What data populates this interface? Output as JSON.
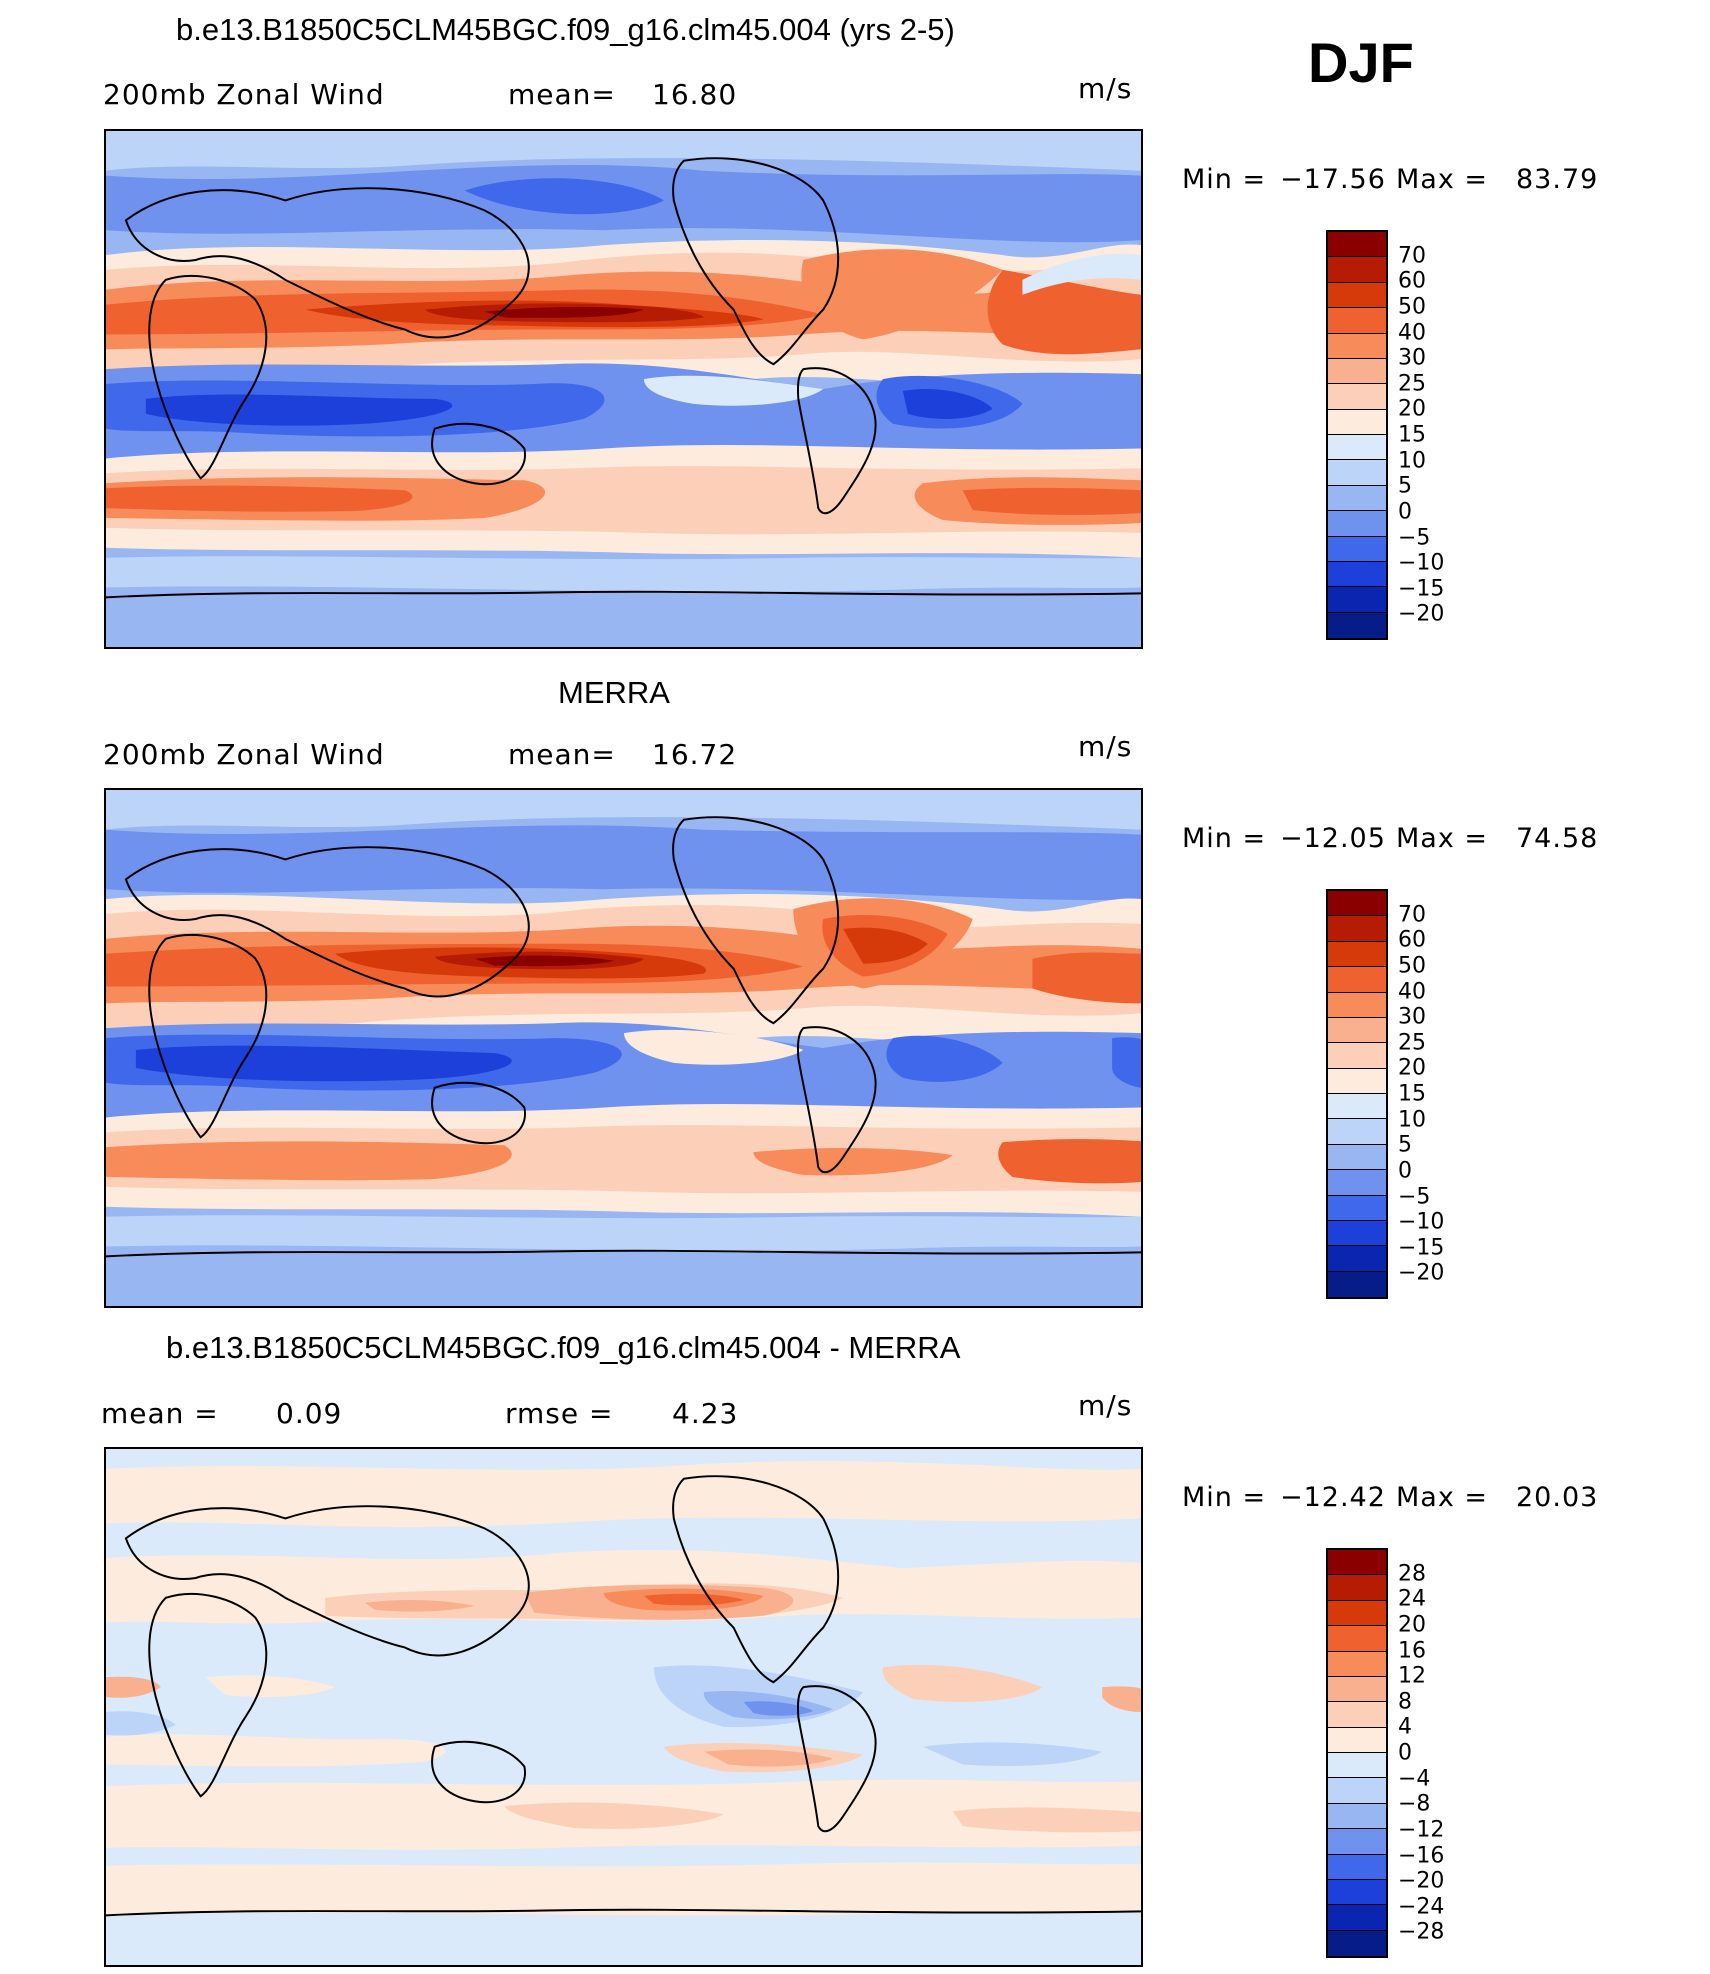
{
  "season": "DJF",
  "units_label": "m/s",
  "panels": [
    {
      "title": "b.e13.B1850C5CLM45BGC.f09_g16.clm45.004 (yrs 2-5)",
      "field_label": "200mb Zonal Wind",
      "stat1_label": "mean=",
      "stat1_value": "16.80",
      "stat2_label": "",
      "stat2_value": "",
      "min_label": "Min =",
      "min_value": "−17.56",
      "max_label": "Max =",
      "max_value": "83.79",
      "colorbar": {
        "labels": [
          "70",
          "60",
          "50",
          "40",
          "30",
          "25",
          "20",
          "15",
          "10",
          "5",
          "0",
          "−5",
          "−10",
          "−15",
          "−20"
        ],
        "colors": [
          "#8a0000",
          "#b61c04",
          "#d63a0a",
          "#ef6230",
          "#f78b5a",
          "#f9b08e",
          "#fcd0b8",
          "#fdebdd",
          "#dbeafa",
          "#bcd4f8",
          "#98b6f2",
          "#6e92ee",
          "#3f68ea",
          "#1c40d9",
          "#0a26b0",
          "#061c88"
        ]
      },
      "map_features": [
        "subtropical westerly jet over Asia and North Pacific",
        "jet over North America and Atlantic",
        "tropical easterlies",
        "southern hemisphere westerlies"
      ]
    },
    {
      "title": "MERRA",
      "field_label": "200mb Zonal Wind",
      "stat1_label": "mean=",
      "stat1_value": "16.72",
      "stat2_label": "",
      "stat2_value": "",
      "min_label": "Min =",
      "min_value": "−12.05",
      "max_label": "Max =",
      "max_value": "74.58",
      "colorbar": {
        "labels": [
          "70",
          "60",
          "50",
          "40",
          "30",
          "25",
          "20",
          "15",
          "10",
          "5",
          "0",
          "−5",
          "−10",
          "−15",
          "−20"
        ],
        "colors": [
          "#8a0000",
          "#b61c04",
          "#d63a0a",
          "#ef6230",
          "#f78b5a",
          "#f9b08e",
          "#fcd0b8",
          "#fdebdd",
          "#dbeafa",
          "#bcd4f8",
          "#98b6f2",
          "#6e92ee",
          "#3f68ea",
          "#1c40d9",
          "#0a26b0",
          "#061c88"
        ]
      },
      "map_features": [
        "jet core east of Japan",
        "jet over eastern North America",
        "tropical easterlies over Indian Ocean and Maritime Continent",
        "southern hemisphere westerlies"
      ]
    },
    {
      "title": "b.e13.B1850C5CLM45BGC.f09_g16.clm45.004 - MERRA",
      "field_label": "",
      "stat1_label": "mean =",
      "stat1_value": "0.09",
      "stat2_label": "rmse =",
      "stat2_value": "4.23",
      "min_label": "Min =",
      "min_value": "−12.42",
      "max_label": "Max =",
      "max_value": "20.03",
      "colorbar": {
        "labels": [
          "28",
          "24",
          "20",
          "16",
          "12",
          "8",
          "4",
          "0",
          "−4",
          "−8",
          "−12",
          "−16",
          "−20",
          "−24",
          "−28"
        ],
        "colors": [
          "#8a0000",
          "#b61c04",
          "#d63a0a",
          "#ef6230",
          "#f78b5a",
          "#f9b08e",
          "#fcd0b8",
          "#fdebdd",
          "#dbeafa",
          "#bcd4f8",
          "#98b6f2",
          "#6e92ee",
          "#3f68ea",
          "#1c40d9",
          "#0a26b0",
          "#061c88"
        ]
      },
      "map_features": [
        "positive difference over North Pacific",
        "negative difference over tropical eastern Pacific"
      ]
    }
  ]
}
